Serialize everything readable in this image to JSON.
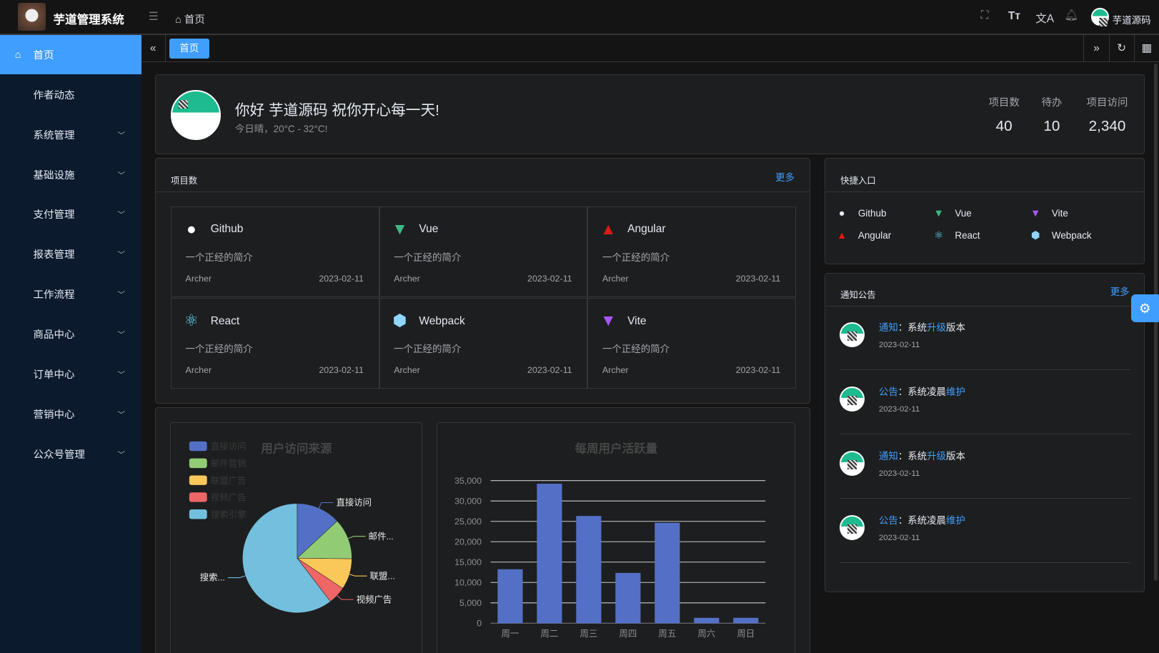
{
  "app": {
    "title": "芋道管理系统",
    "breadcrumb": "首页",
    "user": "芋道源码"
  },
  "sidebar": {
    "items": [
      {
        "label": "首页"
      },
      {
        "label": "作者动态"
      },
      {
        "label": "系统管理"
      },
      {
        "label": "基础设施"
      },
      {
        "label": "支付管理"
      },
      {
        "label": "报表管理"
      },
      {
        "label": "工作流程"
      },
      {
        "label": "商品中心"
      },
      {
        "label": "订单中心"
      },
      {
        "label": "营销中心"
      },
      {
        "label": "公众号管理"
      }
    ]
  },
  "tabs": [
    {
      "label": "首页"
    }
  ],
  "welcome": {
    "greeting": "你好 芋道源码 祝你开心每一天!",
    "weather": "今日晴，20°C - 32°C!",
    "stats": [
      {
        "label": "项目数",
        "value": "40"
      },
      {
        "label": "待办",
        "value": "10"
      },
      {
        "label": "项目访问",
        "value": "2,340"
      }
    ]
  },
  "projects": {
    "title": "项目数",
    "more": "更多",
    "items": [
      {
        "name": "Github",
        "icon": "github-icon",
        "desc": "一个正经的简介",
        "author": "Archer",
        "date": "2023-02-11"
      },
      {
        "name": "Vue",
        "icon": "vue-icon",
        "desc": "一个正经的简介",
        "author": "Archer",
        "date": "2023-02-11"
      },
      {
        "name": "Angular",
        "icon": "angular-icon",
        "desc": "一个正经的简介",
        "author": "Archer",
        "date": "2023-02-11"
      },
      {
        "name": "React",
        "icon": "react-icon",
        "desc": "一个正经的简介",
        "author": "Archer",
        "date": "2023-02-11"
      },
      {
        "name": "Webpack",
        "icon": "webpack-icon",
        "desc": "一个正经的简介",
        "author": "Archer",
        "date": "2023-02-11"
      },
      {
        "name": "Vite",
        "icon": "vite-icon",
        "desc": "一个正经的简介",
        "author": "Archer",
        "date": "2023-02-11"
      }
    ]
  },
  "shortcuts": {
    "title": "快捷入口",
    "items": [
      {
        "name": "Github"
      },
      {
        "name": "Vue"
      },
      {
        "name": "Vite"
      },
      {
        "name": "Angular"
      },
      {
        "name": "React"
      },
      {
        "name": "Webpack"
      }
    ]
  },
  "notices": {
    "title": "通知公告",
    "more": "更多",
    "items": [
      {
        "type": "通知",
        "sep": "：",
        "a": "系统",
        "b": "升级",
        "c": "版本",
        "date": "2023-02-11"
      },
      {
        "type": "公告",
        "sep": "：",
        "a": "系统凌晨",
        "b": "维护",
        "c": "",
        "date": "2023-02-11"
      },
      {
        "type": "通知",
        "sep": "：",
        "a": "系统",
        "b": "升级",
        "c": "版本",
        "date": "2023-02-11"
      },
      {
        "type": "公告",
        "sep": "：",
        "a": "系统凌晨",
        "b": "维护",
        "c": "",
        "date": "2023-02-11"
      }
    ]
  },
  "chart_data": [
    {
      "type": "pie",
      "title": "用户访问来源",
      "legend_position": "top-left",
      "categories": [
        "直接访问",
        "邮件营销",
        "联盟广告",
        "视频广告",
        "搜索引擎"
      ],
      "values": [
        335,
        310,
        234,
        135,
        1548
      ],
      "colors": [
        "#5470c6",
        "#91cc75",
        "#fac858",
        "#ee6666",
        "#73c0de"
      ],
      "slice_labels": [
        "直接访问",
        "邮件...",
        "联盟...",
        "视频广告",
        "搜索..."
      ]
    },
    {
      "type": "bar",
      "title": "每周用户活跃量",
      "categories": [
        "周一",
        "周二",
        "周三",
        "周四",
        "周五",
        "周六",
        "周日"
      ],
      "values": [
        13253,
        34235,
        26321,
        12340,
        24643,
        1322,
        1324
      ],
      "ylim": [
        0,
        35000
      ],
      "yticks": [
        "0",
        "5,000",
        "10,000",
        "15,000",
        "20,000",
        "25,000",
        "30,000",
        "35,000"
      ],
      "color": "#5470c6",
      "grid": true
    }
  ]
}
